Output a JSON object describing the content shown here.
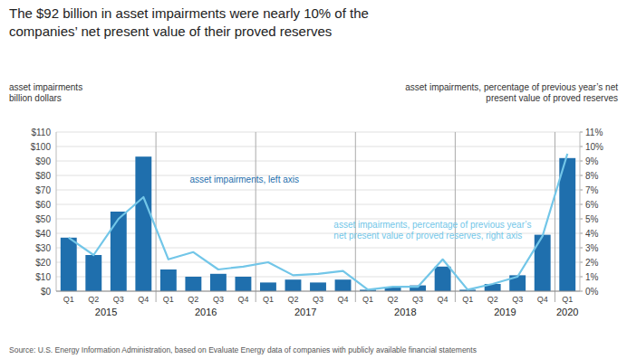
{
  "chart_data": {
    "type": "bar",
    "title": "The $92 billion in asset impairments were nearly 10% of the",
    "subtitle": "companies’ net present value of their proved reserves",
    "ylabel": "asset impairments\nbillion dollars",
    "y2label": "asset impairments, percentage of previous year’s net\npresent value of proved reserves",
    "source": "Source: U.S. Energy Information Administration, based on Evaluate Energy data of companies with publicly available financial statements",
    "categories": [
      "Q1",
      "Q2",
      "Q3",
      "Q4",
      "Q1",
      "Q2",
      "Q3",
      "Q4",
      "Q1",
      "Q2",
      "Q3",
      "Q4",
      "Q1",
      "Q2",
      "Q3",
      "Q4",
      "Q1",
      "Q2",
      "Q3",
      "Q4",
      "Q1"
    ],
    "x_group_labels": [
      "2015",
      "2016",
      "2017",
      "2018",
      "2019",
      "2020"
    ],
    "series": [
      {
        "name": "asset impairments, left axis",
        "type": "bar",
        "color": "#1f6fad",
        "values": [
          37,
          25,
          55,
          93,
          15,
          10,
          12,
          10,
          6,
          8,
          6,
          8,
          1,
          3,
          4,
          17,
          1,
          5,
          11,
          39,
          92
        ]
      },
      {
        "name": "asset impairments, percentage of previous year’s\nnet present value of proved reserves, right axis",
        "type": "line",
        "axis": "y2",
        "color": "#72c6e8",
        "values": [
          3.7,
          2.5,
          5.0,
          6.5,
          2.2,
          2.7,
          1.5,
          1.7,
          2.0,
          1.1,
          1.2,
          1.4,
          0.1,
          0.3,
          0.3,
          2.2,
          0.1,
          0.5,
          1.0,
          3.8,
          9.5
        ]
      }
    ],
    "ylim": [
      0,
      110
    ],
    "yticks": [
      {
        "value": 0,
        "label": "$0"
      },
      {
        "value": 10,
        "label": "$10"
      },
      {
        "value": 20,
        "label": "$20"
      },
      {
        "value": 30,
        "label": "$30"
      },
      {
        "value": 40,
        "label": "$40"
      },
      {
        "value": 50,
        "label": "$50"
      },
      {
        "value": 60,
        "label": "$60"
      },
      {
        "value": 70,
        "label": "$70"
      },
      {
        "value": 80,
        "label": "$80"
      },
      {
        "value": 90,
        "label": "$90"
      },
      {
        "value": 100,
        "label": "$100"
      },
      {
        "value": 110,
        "label": "$110"
      }
    ],
    "y2lim": [
      0,
      11
    ],
    "y2ticks": [
      {
        "value": 0,
        "label": "0%"
      },
      {
        "value": 1,
        "label": "1%"
      },
      {
        "value": 2,
        "label": "2%"
      },
      {
        "value": 3,
        "label": "3%"
      },
      {
        "value": 4,
        "label": "4%"
      },
      {
        "value": 5,
        "label": "5%"
      },
      {
        "value": 6,
        "label": "6%"
      },
      {
        "value": 7,
        "label": "7%"
      },
      {
        "value": 8,
        "label": "8%"
      },
      {
        "value": 9,
        "label": "9%"
      },
      {
        "value": 10,
        "label": "10%"
      },
      {
        "value": 11,
        "label": "11%"
      }
    ],
    "grid": true
  }
}
